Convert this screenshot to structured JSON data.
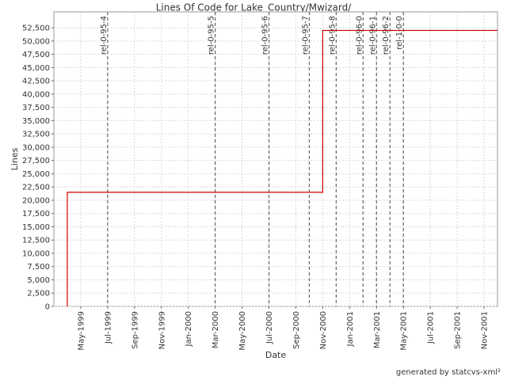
{
  "chart_data": {
    "type": "line",
    "title": "Lines Of Code for Lake_Country/Mwizard/",
    "x_label": "Date",
    "y_label": "Lines",
    "footer": "generated by statcvs-xml²",
    "grid": true,
    "x": [
      "1999-04",
      "1999-04",
      "2000-11",
      "2000-11",
      "2001-12"
    ],
    "series": [
      {
        "name": "Lines",
        "color": "#cc0000",
        "values": [
          0,
          21500,
          21500,
          52000,
          52000
        ]
      }
    ],
    "xlim": [
      "1999-03",
      "2001-12"
    ],
    "xticks": [
      {
        "value": "1999-05",
        "label": "May-1999"
      },
      {
        "value": "1999-07",
        "label": "Jul-1999"
      },
      {
        "value": "1999-09",
        "label": "Sep-1999"
      },
      {
        "value": "1999-11",
        "label": "Nov-1999"
      },
      {
        "value": "2000-01",
        "label": "Jan-2000"
      },
      {
        "value": "2000-03",
        "label": "Mar-2000"
      },
      {
        "value": "2000-05",
        "label": "May-2000"
      },
      {
        "value": "2000-07",
        "label": "Jul-2000"
      },
      {
        "value": "2000-09",
        "label": "Sep-2000"
      },
      {
        "value": "2000-11",
        "label": "Nov-2000"
      },
      {
        "value": "2001-01",
        "label": "Jan-2001"
      },
      {
        "value": "2001-03",
        "label": "Mar-2001"
      },
      {
        "value": "2001-05",
        "label": "May-2001"
      },
      {
        "value": "2001-07",
        "label": "Jul-2001"
      },
      {
        "value": "2001-09",
        "label": "Sep-2001"
      },
      {
        "value": "2001-11",
        "label": "Nov-2001"
      }
    ],
    "ylim": [
      0,
      55500
    ],
    "yticks": [
      0,
      {
        "value": 2500,
        "label": "2,500"
      },
      {
        "value": 5000,
        "label": "5,000"
      },
      {
        "value": 7500,
        "label": "7,500"
      },
      {
        "value": 10000,
        "label": "10,000"
      },
      {
        "value": 12500,
        "label": "12,500"
      },
      {
        "value": 15000,
        "label": "15,000"
      },
      {
        "value": 17500,
        "label": "17,500"
      },
      {
        "value": 20000,
        "label": "20,000"
      },
      {
        "value": 22500,
        "label": "22,500"
      },
      {
        "value": 25000,
        "label": "25,000"
      },
      {
        "value": 27500,
        "label": "27,500"
      },
      {
        "value": 30000,
        "label": "30,000"
      },
      {
        "value": 32500,
        "label": "32,500"
      },
      {
        "value": 35000,
        "label": "35,000"
      },
      {
        "value": 37500,
        "label": "37,500"
      },
      {
        "value": 40000,
        "label": "40,000"
      },
      {
        "value": 42500,
        "label": "42,500"
      },
      {
        "value": 45000,
        "label": "45,000"
      },
      {
        "value": 47500,
        "label": "47,500"
      },
      {
        "value": 50000,
        "label": "50,000"
      },
      {
        "value": 52500,
        "label": "52,500"
      }
    ],
    "tags": [
      {
        "label": "rel-0-95-4",
        "x": "1999-07"
      },
      {
        "label": "rel-0-95-5",
        "x": "2000-03"
      },
      {
        "label": "rel-0-95-6",
        "x": "2000-07"
      },
      {
        "label": "rel-0-95-7",
        "x": "2000-10"
      },
      {
        "label": "rel-0-95-8",
        "x": "2000-12"
      },
      {
        "label": "rel-0-96-0",
        "x": "2001-02"
      },
      {
        "label": "rel-0-96-1",
        "x": "2001-03"
      },
      {
        "label": "rel-0-96-2",
        "x": "2001-04"
      },
      {
        "label": "rel-1-0-0",
        "x": "2001-05"
      }
    ]
  }
}
